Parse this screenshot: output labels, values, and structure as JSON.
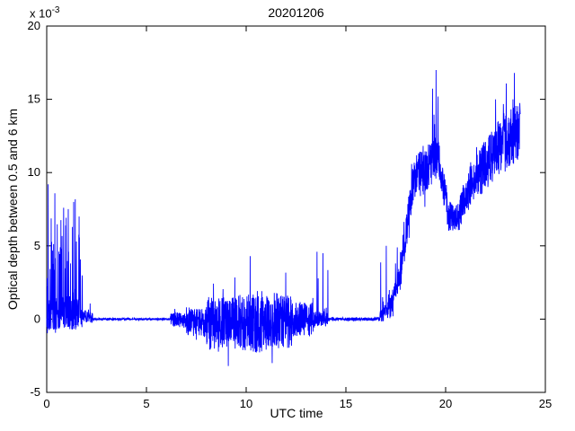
{
  "chart_data": {
    "type": "line",
    "title": "20201206",
    "xlabel": "UTC time",
    "ylabel": "Optical depth between 0.5 and 6 km",
    "y_scale": {
      "base": "x 10",
      "exponent": "-3"
    },
    "xlim": [
      0,
      25
    ],
    "ylim": [
      -5,
      20
    ],
    "xticks": [
      0,
      5,
      10,
      15,
      20,
      25
    ],
    "yticks": [
      -5,
      0,
      5,
      10,
      15,
      20
    ],
    "grid": false,
    "legend": false,
    "line_color": "#0000ff",
    "units_note": "y values in units of 1e-3 optical depth",
    "series": [
      {
        "name": "optical-depth-0.5-6km",
        "generator": {
          "seed": 1206,
          "dx": 0.008,
          "x_end": 23.75,
          "segments": [
            {
              "x0": 0.0,
              "x1": 1.8,
              "b0": 0.4,
              "b1": 0.4,
              "noise": 1.2,
              "sp": 0.3,
              "spike": 7.5,
              "snp": 0.1,
              "nspike": 0.8
            },
            {
              "x0": 1.8,
              "x1": 2.3,
              "b0": 0.3,
              "b1": 0.0,
              "noise": 0.4,
              "sp": 0.1,
              "spike": 2.0,
              "snp": 0.05,
              "nspike": 0.4
            },
            {
              "x0": 2.3,
              "x1": 6.2,
              "b0": 0.0,
              "b1": 0.0,
              "noise": 0.07,
              "sp": 0.004,
              "spike": 0.4,
              "snp": 0.004,
              "nspike": 0.3
            },
            {
              "x0": 6.2,
              "x1": 7.0,
              "b0": 0.0,
              "b1": -0.1,
              "noise": 0.5,
              "sp": 0.02,
              "spike": 0.8,
              "snp": 0.02,
              "nspike": 0.6
            },
            {
              "x0": 7.0,
              "x1": 8.0,
              "b0": -0.1,
              "b1": -0.3,
              "noise": 1.0,
              "sp": 0.04,
              "spike": 1.2,
              "snp": 0.04,
              "nspike": 0.8
            },
            {
              "x0": 8.0,
              "x1": 9.5,
              "b0": -0.3,
              "b1": -0.3,
              "noise": 1.8,
              "sp": 0.05,
              "spike": 2.2,
              "snp": 0.05,
              "nspike": 1.2
            },
            {
              "x0": 9.5,
              "x1": 11.0,
              "b0": -0.3,
              "b1": -0.3,
              "noise": 2.0,
              "sp": 0.06,
              "spike": 2.5,
              "snp": 0.05,
              "nspike": 1.2
            },
            {
              "x0": 11.0,
              "x1": 12.3,
              "b0": -0.2,
              "b1": -0.2,
              "noise": 1.8,
              "sp": 0.05,
              "spike": 2.0,
              "snp": 0.05,
              "nspike": 1.2
            },
            {
              "x0": 12.3,
              "x1": 13.3,
              "b0": 0.0,
              "b1": 0.0,
              "noise": 1.2,
              "sp": 0.04,
              "spike": 1.5,
              "snp": 0.04,
              "nspike": 1.0
            },
            {
              "x0": 13.3,
              "x1": 14.1,
              "b0": 0.0,
              "b1": 0.0,
              "noise": 0.5,
              "sp": 0.06,
              "spike": 4.0,
              "snp": 0.02,
              "nspike": 0.5
            },
            {
              "x0": 14.1,
              "x1": 16.7,
              "b0": 0.0,
              "b1": 0.0,
              "noise": 0.12,
              "sp": 0.004,
              "spike": 0.8,
              "snp": 0.004,
              "nspike": 0.3
            },
            {
              "x0": 16.7,
              "x1": 17.2,
              "b0": 0.1,
              "b1": 0.8,
              "noise": 0.5,
              "sp": 0.15,
              "spike": 3.5,
              "snp": 0.02,
              "nspike": 0.4
            },
            {
              "x0": 17.2,
              "x1": 17.7,
              "b0": 0.8,
              "b1": 3.0,
              "noise": 0.8,
              "sp": 0.12,
              "spike": 2.5,
              "snp": 0.03,
              "nspike": 0.8
            },
            {
              "x0": 17.7,
              "x1": 18.4,
              "b0": 3.0,
              "b1": 9.5,
              "noise": 1.3,
              "sp": 0.08,
              "spike": 2.0,
              "snp": 0.05,
              "nspike": 1.5
            },
            {
              "x0": 18.4,
              "x1": 19.3,
              "b0": 9.5,
              "b1": 10.5,
              "noise": 1.6,
              "sp": 0.05,
              "spike": 2.0,
              "snp": 0.05,
              "nspike": 2.0
            },
            {
              "x0": 19.3,
              "x1": 19.65,
              "b0": 10.5,
              "b1": 11.5,
              "noise": 1.6,
              "sp": 0.1,
              "spike": 4.5,
              "snp": 0.05,
              "nspike": 1.5
            },
            {
              "x0": 19.65,
              "x1": 20.1,
              "b0": 11.0,
              "b1": 7.5,
              "noise": 1.2,
              "sp": 0.03,
              "spike": 1.5,
              "snp": 0.03,
              "nspike": 1.0
            },
            {
              "x0": 20.1,
              "x1": 20.7,
              "b0": 7.0,
              "b1": 7.0,
              "noise": 1.0,
              "sp": 0.04,
              "spike": 1.5,
              "snp": 0.04,
              "nspike": 1.0
            },
            {
              "x0": 20.7,
              "x1": 21.6,
              "b0": 7.5,
              "b1": 10.0,
              "noise": 1.3,
              "sp": 0.05,
              "spike": 2.0,
              "snp": 0.04,
              "nspike": 1.2
            },
            {
              "x0": 21.6,
              "x1": 22.6,
              "b0": 10.0,
              "b1": 11.5,
              "noise": 1.8,
              "sp": 0.06,
              "spike": 3.0,
              "snp": 0.04,
              "nspike": 1.5
            },
            {
              "x0": 22.6,
              "x1": 23.76,
              "b0": 11.5,
              "b1": 13.0,
              "noise": 2.0,
              "sp": 0.08,
              "spike": 3.5,
              "snp": 0.04,
              "nspike": 1.5
            }
          ],
          "explicit_points": [
            {
              "x": 0.07,
              "v": 9.2
            },
            {
              "x": 0.85,
              "v": 7.6
            },
            {
              "x": 1.35,
              "v": 8.0
            },
            {
              "x": 1.62,
              "v": 7.0
            },
            {
              "x": 9.1,
              "v": -3.2
            },
            {
              "x": 10.2,
              "v": 4.3
            },
            {
              "x": 11.3,
              "v": -3.0
            },
            {
              "x": 13.55,
              "v": 4.6
            },
            {
              "x": 13.85,
              "v": 4.5
            },
            {
              "x": 17.02,
              "v": 5.0
            },
            {
              "x": 19.52,
              "v": 17.0
            },
            {
              "x": 22.5,
              "v": 15.0
            },
            {
              "x": 23.45,
              "v": 16.8
            }
          ]
        }
      }
    ]
  }
}
